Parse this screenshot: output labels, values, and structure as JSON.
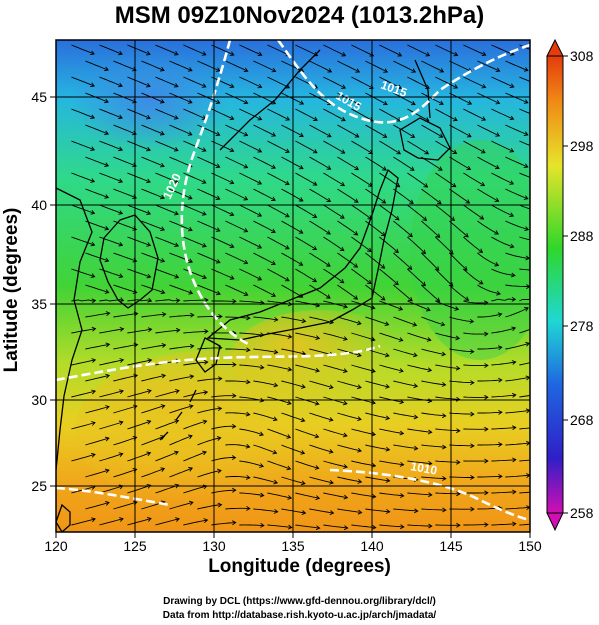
{
  "title": "MSM 09Z10Nov2024 (1013.2hPa)",
  "xlabel": "Longitude (degrees)",
  "ylabel": "Latitude  (degrees)",
  "credit_line1": "Drawing by DCL (https://www.gfd-dennou.org/library/dcl/)",
  "credit_line2": "Data from http://database.rish.kyoto-u.ac.jp/arch/jmadata/",
  "map": {
    "type": "temperature field with streamlines",
    "lon_range": [
      120,
      150
    ],
    "lat_range": [
      22.4,
      47.6
    ],
    "lon_ticks": [
      120,
      125,
      130,
      135,
      140,
      145,
      150
    ],
    "lat_ticks": [
      25,
      30,
      35,
      40,
      45
    ],
    "grid": true,
    "contour_labels": [
      "1020",
      "1015",
      "1015",
      "1010"
    ],
    "colors": {
      "cold": "#2a5fd0",
      "cyan": "#22d0c8",
      "green": "#3fd23a",
      "yellow": "#d8e02a",
      "orange": "#f0a018",
      "streamline": "#000000",
      "isobar": "#ffffff",
      "land_outline": "#000000"
    }
  },
  "colorbar": {
    "min": 258,
    "max": 308,
    "labels": [
      "308",
      "298",
      "288",
      "278",
      "268",
      "258"
    ],
    "colors": [
      "#d10fb2",
      "#2f1fc7",
      "#1f66e0",
      "#1fd7d4",
      "#2fd72a",
      "#e6e42a",
      "#f08a16",
      "#e43c0c"
    ]
  }
}
